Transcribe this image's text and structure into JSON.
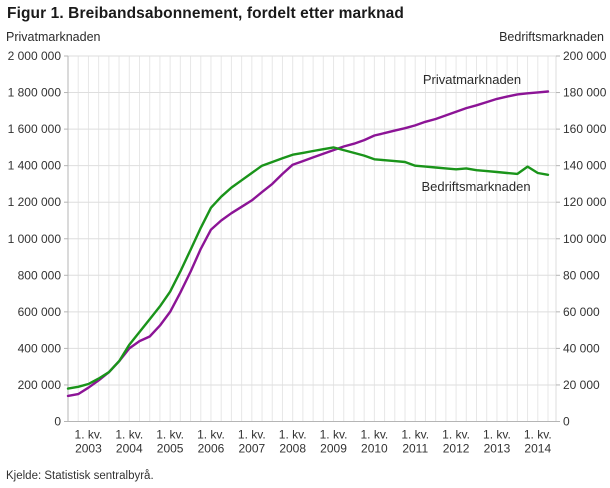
{
  "page": {
    "title": "Figur 1. Breibandsabonnement, fordelt etter marknad",
    "source": "Kjelde: Statistisk sentralbyrå."
  },
  "chart_data": {
    "type": "line",
    "title": "Figur 1. Breibandsabonnement, fordelt etter marknad",
    "grid": true,
    "legend": "inline-labels",
    "x_tick_quarter_label": "1. kv.",
    "x_tick_years": [
      "2003",
      "2004",
      "2005",
      "2006",
      "2007",
      "2008",
      "2009",
      "2010",
      "2011",
      "2012",
      "2013",
      "2014"
    ],
    "categories": [
      "2002K3",
      "2002K4",
      "2003K1",
      "2003K2",
      "2003K3",
      "2003K4",
      "2004K1",
      "2004K2",
      "2004K3",
      "2004K4",
      "2005K1",
      "2005K2",
      "2005K3",
      "2005K4",
      "2006K1",
      "2006K2",
      "2006K3",
      "2006K4",
      "2007K1",
      "2007K2",
      "2007K3",
      "2007K4",
      "2008K1",
      "2008K2",
      "2008K3",
      "2008K4",
      "2009K1",
      "2009K2",
      "2009K3",
      "2009K4",
      "2010K1",
      "2010K2",
      "2010K3",
      "2010K4",
      "2011K1",
      "2011K2",
      "2011K3",
      "2011K4",
      "2012K1",
      "2012K2",
      "2012K3",
      "2012K4",
      "2013K1",
      "2013K2",
      "2013K3",
      "2013K4",
      "2014K1",
      "2014K2"
    ],
    "left_axis": {
      "title": "Privatmarknaden",
      "min": 0,
      "max": 2000000,
      "step": 200000,
      "tick_labels": [
        "0",
        "200 000",
        "400 000",
        "600 000",
        "800 000",
        "1 000 000",
        "1 200 000",
        "1 400 000",
        "1 600 000",
        "1 800 000",
        "2 000 000"
      ]
    },
    "right_axis": {
      "title": "Bedriftsmarknaden",
      "min": 0,
      "max": 200000,
      "step": 20000,
      "tick_labels": [
        "0",
        "20 000",
        "40 000",
        "60 000",
        "80 000",
        "100 000",
        "120 000",
        "140 000",
        "160 000",
        "180 000",
        "200 000"
      ]
    },
    "series": [
      {
        "name": "Privatmarknaden",
        "axis": "left",
        "color": "#8c1496",
        "values": [
          140000,
          150000,
          185000,
          225000,
          270000,
          330000,
          400000,
          440000,
          465000,
          525000,
          600000,
          705000,
          820000,
          945000,
          1050000,
          1100000,
          1140000,
          1175000,
          1210000,
          1255000,
          1300000,
          1355000,
          1405000,
          1425000,
          1445000,
          1465000,
          1485000,
          1505000,
          1520000,
          1540000,
          1565000,
          1578000,
          1592000,
          1605000,
          1620000,
          1640000,
          1655000,
          1675000,
          1695000,
          1715000,
          1730000,
          1748000,
          1765000,
          1778000,
          1790000,
          1796000,
          1801000,
          1806000
        ]
      },
      {
        "name": "Bedriftsmarknaden",
        "axis": "right",
        "color": "#1a941a",
        "values": [
          18000,
          19000,
          20500,
          23500,
          27000,
          33000,
          42000,
          49000,
          56000,
          63000,
          71000,
          82000,
          94000,
          106000,
          117000,
          123000,
          128000,
          132000,
          136000,
          140000,
          142000,
          144000,
          146000,
          147000,
          148000,
          149000,
          150000,
          148500,
          147000,
          145500,
          143500,
          143000,
          142500,
          142000,
          140000,
          139500,
          139000,
          138500,
          138000,
          138500,
          137500,
          137000,
          136500,
          136000,
          135500,
          139500,
          136000,
          135000
        ]
      }
    ]
  }
}
